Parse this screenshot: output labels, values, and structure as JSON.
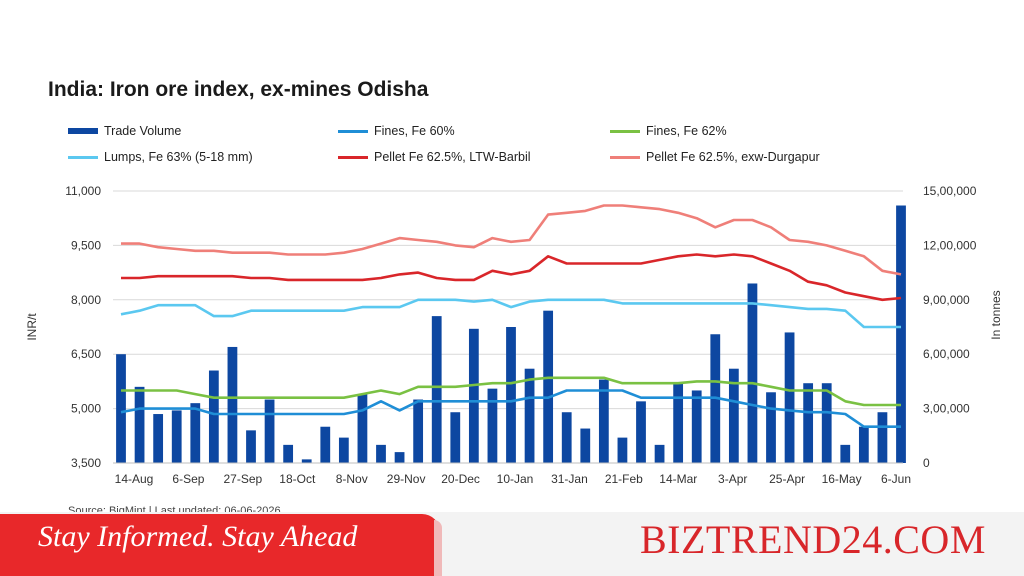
{
  "chart_data": {
    "type": "bar+line",
    "title": "India: Iron ore index, ex-mines Odisha",
    "ylabel": "INR/t",
    "y2label": "In tonnes",
    "ylim": [
      3500,
      11000
    ],
    "y2lim": [
      0,
      1500000
    ],
    "yticks": [
      "3,500",
      "5,000",
      "6,500",
      "8,000",
      "9,500",
      "11,000"
    ],
    "y2ticks": [
      "0",
      "3,00,000",
      "6,00,000",
      "9,00,000",
      "12,00,000",
      "15,00,000"
    ],
    "xticks": [
      "14-Aug",
      "6-Sep",
      "27-Sep",
      "18-Oct",
      "8-Nov",
      "29-Nov",
      "20-Dec",
      "10-Jan",
      "31-Jan",
      "21-Feb",
      "14-Mar",
      "3-Apr",
      "25-Apr",
      "16-May",
      "6-Jun"
    ],
    "grid": true,
    "legend_position": "top",
    "series": [
      {
        "name": "Trade Volume",
        "kind": "bar",
        "axis": "right",
        "color": "#0d47a1",
        "values": [
          600000,
          420000,
          270000,
          290000,
          330000,
          510000,
          640000,
          180000,
          350000,
          100000,
          20000,
          200000,
          140000,
          380000,
          100000,
          60000,
          350000,
          810000,
          280000,
          740000,
          410000,
          750000,
          520000,
          840000,
          280000,
          190000,
          460000,
          140000,
          340000,
          100000,
          440000,
          400000,
          710000,
          520000,
          990000,
          390000,
          720000,
          440000,
          440000,
          100000,
          200000,
          280000,
          1420000
        ]
      },
      {
        "name": "Fines, Fe 60%",
        "kind": "line",
        "axis": "left",
        "color": "#1f8ed6",
        "values": [
          4900,
          5000,
          5000,
          5000,
          5000,
          4850,
          4850,
          4850,
          4850,
          4850,
          4850,
          4850,
          4850,
          4950,
          5200,
          4950,
          5200,
          5200,
          5200,
          5200,
          5200,
          5200,
          5300,
          5300,
          5500,
          5500,
          5500,
          5500,
          5300,
          5300,
          5300,
          5300,
          5300,
          5200,
          5100,
          5000,
          4950,
          4900,
          4900,
          4850,
          4500,
          4500,
          4500
        ]
      },
      {
        "name": "Fines, Fe 62%",
        "kind": "line",
        "axis": "left",
        "color": "#7ac143",
        "values": [
          5500,
          5500,
          5500,
          5500,
          5400,
          5300,
          5300,
          5300,
          5300,
          5300,
          5300,
          5300,
          5300,
          5400,
          5500,
          5400,
          5600,
          5600,
          5600,
          5650,
          5700,
          5700,
          5800,
          5850,
          5850,
          5850,
          5850,
          5700,
          5700,
          5700,
          5700,
          5750,
          5750,
          5700,
          5700,
          5600,
          5500,
          5500,
          5500,
          5200,
          5100,
          5100,
          5100
        ]
      },
      {
        "name": "Lumps, Fe 63% (5-18 mm)",
        "kind": "line",
        "axis": "left",
        "color": "#5bc8f0",
        "values": [
          7600,
          7700,
          7850,
          7850,
          7850,
          7550,
          7550,
          7700,
          7700,
          7700,
          7700,
          7700,
          7700,
          7800,
          7800,
          7800,
          8000,
          8000,
          8000,
          7950,
          8000,
          7800,
          7950,
          8000,
          8000,
          8000,
          8000,
          7900,
          7900,
          7900,
          7900,
          7900,
          7900,
          7900,
          7900,
          7850,
          7800,
          7750,
          7750,
          7700,
          7250,
          7250,
          7250
        ]
      },
      {
        "name": "Pellet Fe 62.5%, LTW-Barbil",
        "kind": "line",
        "axis": "left",
        "color": "#d9262a",
        "values": [
          8600,
          8600,
          8650,
          8650,
          8650,
          8650,
          8650,
          8600,
          8600,
          8550,
          8550,
          8550,
          8550,
          8550,
          8600,
          8700,
          8750,
          8600,
          8550,
          8550,
          8800,
          8700,
          8800,
          9200,
          9000,
          9000,
          9000,
          9000,
          9000,
          9100,
          9200,
          9250,
          9200,
          9250,
          9200,
          9000,
          8800,
          8500,
          8400,
          8200,
          8100,
          8000,
          8050
        ]
      },
      {
        "name": "Pellet Fe  62.5%, exw-Durgapur",
        "kind": "line",
        "axis": "left",
        "color": "#ef7f79",
        "values": [
          9550,
          9550,
          9450,
          9400,
          9350,
          9350,
          9300,
          9300,
          9300,
          9250,
          9250,
          9250,
          9300,
          9400,
          9550,
          9700,
          9650,
          9600,
          9500,
          9450,
          9700,
          9600,
          9650,
          10350,
          10400,
          10450,
          10600,
          10600,
          10550,
          10500,
          10400,
          10250,
          10000,
          10200,
          10200,
          10000,
          9650,
          9600,
          9500,
          9350,
          9200,
          8800,
          8700
        ]
      }
    ]
  },
  "legend": [
    {
      "label": "Trade Volume",
      "color": "#0d47a1",
      "kind": "bar"
    },
    {
      "label": "Fines, Fe 60%",
      "color": "#1f8ed6",
      "kind": "line"
    },
    {
      "label": "Fines, Fe 62%",
      "color": "#7ac143",
      "kind": "line"
    },
    {
      "label": "Lumps, Fe 63% (5-18 mm)",
      "color": "#5bc8f0",
      "kind": "line"
    },
    {
      "label": "Pellet Fe 62.5%, LTW-Barbil",
      "color": "#d9262a",
      "kind": "line"
    },
    {
      "label": "Pellet Fe  62.5%, exw-Durgapur",
      "color": "#ef7f79",
      "kind": "line"
    }
  ],
  "source_text": "Source: BigMint | Last updated: 06-06-2026",
  "footer": {
    "tagline": "Stay Informed. Stay Ahead",
    "brand": "BIZTREND24.COM",
    "tagline_bg": "#e8282a",
    "brand_color": "#d8262a"
  }
}
